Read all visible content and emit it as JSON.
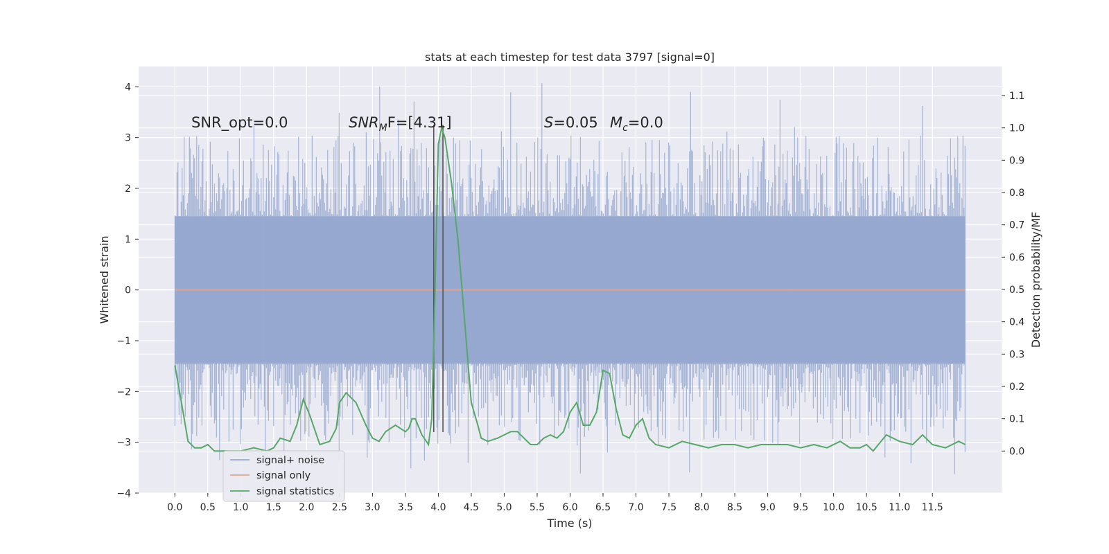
{
  "chart_data": {
    "type": "line",
    "title": "stats at each timestep for test data 3797 [signal=0]",
    "xlabel": "Time (s)",
    "ylabel": "Whitened strain",
    "y2label": "Detection probability/MF",
    "xlim": [
      -0.55,
      12.55
    ],
    "ylim": [
      -4.0,
      4.4
    ],
    "y2lim": [
      -0.13,
      1.19
    ],
    "x_ticks": [
      "0.0",
      "0.5",
      "1.0",
      "1.5",
      "2.0",
      "2.5",
      "3.0",
      "3.5",
      "4.0",
      "4.5",
      "5.0",
      "5.5",
      "6.0",
      "6.5",
      "7.0",
      "7.5",
      "8.0",
      "8.5",
      "9.0",
      "9.5",
      "10.0",
      "10.5",
      "11.0",
      "11.5"
    ],
    "y_ticks": [
      "4",
      "3",
      "2",
      "1",
      "0",
      "−1",
      "−2",
      "−3",
      "−4"
    ],
    "y2_ticks": [
      "1.1",
      "1.0",
      "0.9",
      "0.8",
      "0.7",
      "0.6",
      "0.5",
      "0.4",
      "0.3",
      "0.2",
      "0.1",
      "0.0"
    ],
    "grid": true,
    "legend_position": "bottom-left",
    "annotations": {
      "snr_opt": "SNR_opt=0.0",
      "snr_mf_base": "SNR",
      "snr_mf_sub": "M",
      "snr_mf_rest": "F=[4.31]",
      "s_var": "S",
      "s_value": "=0.05",
      "mc_var": "M",
      "mc_sub": "c",
      "mc_value": "=0.0"
    },
    "markers": {
      "x": [
        3.93,
        4.07
      ],
      "y_range": [
        -2.8,
        3.25
      ],
      "color": "#555555"
    },
    "series": [
      {
        "name": "signal+ noise",
        "color": "#97a9cf",
        "x_range": [
          0.0,
          12.0
        ],
        "band": [
          -1.45,
          1.45
        ],
        "spike_max_range": [
          -3.65,
          4.1
        ]
      },
      {
        "name": "signal only",
        "color": "#e4a68f",
        "x": [
          0.0,
          12.0
        ],
        "y": [
          0.0,
          0.0
        ]
      },
      {
        "name": "signal statistics",
        "color": "#55a868",
        "axis": "right",
        "x": [
          0.0,
          0.1,
          0.2,
          0.3,
          0.4,
          0.5,
          0.6,
          0.8,
          1.0,
          1.2,
          1.4,
          1.5,
          1.6,
          1.75,
          1.85,
          1.95,
          2.05,
          2.2,
          2.35,
          2.45,
          2.5,
          2.6,
          2.75,
          2.9,
          3.0,
          3.1,
          3.2,
          3.35,
          3.5,
          3.55,
          3.6,
          3.65,
          3.75,
          3.85,
          3.9,
          3.95,
          4.0,
          4.05,
          4.1,
          4.2,
          4.3,
          4.4,
          4.5,
          4.6,
          4.65,
          4.75,
          4.9,
          5.0,
          5.1,
          5.2,
          5.3,
          5.4,
          5.5,
          5.6,
          5.7,
          5.8,
          5.9,
          6.0,
          6.1,
          6.2,
          6.3,
          6.4,
          6.5,
          6.6,
          6.7,
          6.8,
          6.9,
          7.0,
          7.1,
          7.2,
          7.3,
          7.5,
          7.7,
          7.9,
          8.1,
          8.3,
          8.5,
          8.7,
          8.9,
          9.1,
          9.3,
          9.5,
          9.7,
          9.9,
          10.1,
          10.25,
          10.4,
          10.5,
          10.6,
          10.8,
          11.0,
          11.2,
          11.35,
          11.5,
          11.7,
          11.9,
          12.0
        ],
        "y": [
          0.265,
          0.15,
          0.03,
          0.01,
          0.01,
          0.02,
          0.0,
          0.0,
          0.0,
          0.01,
          0.0,
          0.01,
          0.04,
          0.03,
          0.08,
          0.16,
          0.11,
          0.02,
          0.03,
          0.07,
          0.15,
          0.18,
          0.15,
          0.08,
          0.04,
          0.03,
          0.06,
          0.08,
          0.06,
          0.07,
          0.1,
          0.1,
          0.05,
          0.02,
          0.1,
          0.5,
          0.95,
          1.0,
          0.97,
          0.83,
          0.65,
          0.4,
          0.15,
          0.08,
          0.04,
          0.03,
          0.04,
          0.05,
          0.06,
          0.06,
          0.04,
          0.02,
          0.02,
          0.04,
          0.05,
          0.04,
          0.06,
          0.12,
          0.15,
          0.08,
          0.08,
          0.12,
          0.25,
          0.24,
          0.13,
          0.05,
          0.04,
          0.08,
          0.1,
          0.04,
          0.02,
          0.01,
          0.03,
          0.02,
          0.01,
          0.02,
          0.02,
          0.01,
          0.02,
          0.02,
          0.02,
          0.01,
          0.02,
          0.01,
          0.03,
          0.01,
          0.01,
          0.02,
          0.0,
          0.05,
          0.03,
          0.02,
          0.05,
          0.02,
          0.01,
          0.03,
          0.02
        ]
      }
    ]
  }
}
